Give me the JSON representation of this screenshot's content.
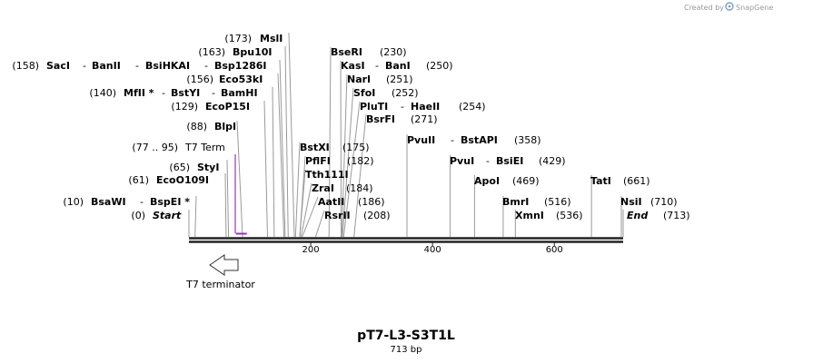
{
  "credit": {
    "prefix": "Created by",
    "brand": "SnapGene"
  },
  "title": "pT7-L3-S3T1L",
  "length_label": "713 bp",
  "map": {
    "length": 713,
    "ticks": [
      {
        "pos": 200,
        "label": "200"
      },
      {
        "pos": 400,
        "label": "400"
      },
      {
        "pos": 600,
        "label": "600"
      }
    ]
  },
  "sites": [
    {
      "name": "MslI",
      "pos": 173,
      "pos_label": "(173)"
    },
    {
      "name": "Bpu10I",
      "pos": 163,
      "pos_label": "(163)"
    },
    {
      "name": "SacI",
      "name2": "BanII",
      "name3": "BsiHKAI",
      "name4": "Bsp1286I",
      "pos": 158,
      "pos_label": "(158)"
    },
    {
      "name": "Eco53kI",
      "pos": 156,
      "pos_label": "(156)"
    },
    {
      "name": "MfII *",
      "name2": "BstYI",
      "name3": "BamHI",
      "pos": 140,
      "pos_label": "(140)"
    },
    {
      "name": "EcoP15I",
      "pos": 129,
      "pos_label": "(129)"
    },
    {
      "name": "BlpI",
      "pos": 88,
      "pos_label": "(88)"
    },
    {
      "name": "StyI",
      "pos": 65,
      "pos_label": "(65)"
    },
    {
      "name": "EcoO109I",
      "pos": 61,
      "pos_label": "(61)"
    },
    {
      "name": "BsaWI",
      "name2": "BspEI *",
      "pos": 10,
      "pos_label": "(10)"
    },
    {
      "name": "Start",
      "pos": 0,
      "pos_label": "(0)"
    },
    {
      "name": "BseRI",
      "pos": 230,
      "pos_label": "(230)"
    },
    {
      "name": "KasI",
      "name2": "BanI",
      "pos": 250,
      "pos_label": "(250)"
    },
    {
      "name": "NarI",
      "pos": 251,
      "pos_label": "(251)"
    },
    {
      "name": "SfoI",
      "pos": 252,
      "pos_label": "(252)"
    },
    {
      "name": "PluTI",
      "name2": "HaeII",
      "pos": 254,
      "pos_label": "(254)"
    },
    {
      "name": "BsrFI",
      "pos": 271,
      "pos_label": "(271)"
    },
    {
      "name": "BstXI",
      "pos": 175,
      "pos_label": "(175)"
    },
    {
      "name": "PflFI",
      "pos": 182,
      "pos_label": "(182)"
    },
    {
      "name": "Tth111I",
      "pos": 182,
      "pos_label": ""
    },
    {
      "name": "ZraI",
      "pos": 184,
      "pos_label": "(184)"
    },
    {
      "name": "AatII",
      "pos": 186,
      "pos_label": "(186)"
    },
    {
      "name": "RsrII",
      "pos": 208,
      "pos_label": "(208)"
    },
    {
      "name": "PvuII",
      "name2": "BstAPI",
      "pos": 358,
      "pos_label": "(358)"
    },
    {
      "name": "PvuI",
      "name2": "BsiEI",
      "pos": 429,
      "pos_label": "(429)"
    },
    {
      "name": "ApoI",
      "pos": 469,
      "pos_label": "(469)"
    },
    {
      "name": "BmrI",
      "pos": 516,
      "pos_label": "(516)"
    },
    {
      "name": "XmnI",
      "pos": 536,
      "pos_label": "(536)"
    },
    {
      "name": "TatI",
      "pos": 661,
      "pos_label": "(661)"
    },
    {
      "name": "NsiI",
      "pos": 710,
      "pos_label": "(710)"
    },
    {
      "name": "End",
      "pos": 713,
      "pos_label": "(713)"
    }
  ],
  "features": [
    {
      "name": "T7 Term",
      "range_label": "(77 .. 95)",
      "start": 77,
      "end": 95,
      "color": "#9b2fc4"
    },
    {
      "name": "T7 terminator",
      "direction": "reverse",
      "color": "#333333"
    }
  ]
}
